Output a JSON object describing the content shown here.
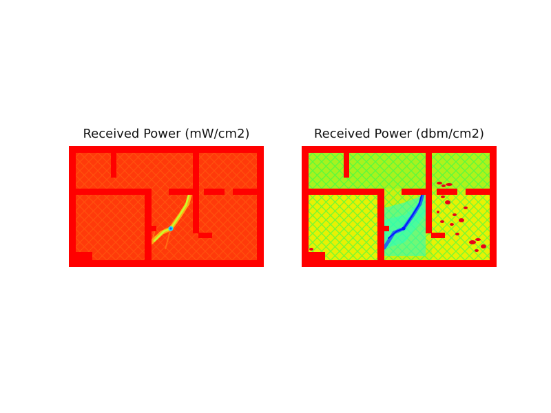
{
  "chart_data": [
    {
      "type": "heatmap",
      "title": "Received Power (mW/cm2)",
      "colormap": "rainbow (red = high, blue = low)",
      "colors": {
        "wall": "#ff0000",
        "field": "#ff3a0a",
        "streak": "#ff8c1a",
        "ridge_hot": "#ffd21a",
        "ridge_mid": "#c8ff2a",
        "ridge_low": "#1ed7ff",
        "source": "#1060ff"
      }
    },
    {
      "type": "heatmap",
      "title": "Received Power (dbm/cm2)",
      "colormap": "rainbow (red = high, blue = low)",
      "colors": {
        "wall": "#ff0000",
        "field_a": "#cfef10",
        "field_b": "#f2f200",
        "streak": "#22ff55",
        "cyan_zone": "#22ffcc",
        "ridge": "#1e4fff",
        "ridge_core": "#0018ff",
        "hot_spot": "#e80018"
      }
    }
  ]
}
